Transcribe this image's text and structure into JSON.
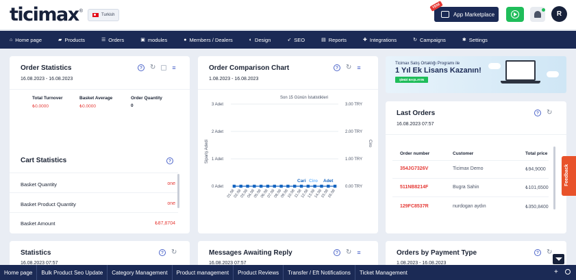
{
  "header": {
    "logo": "ticimax",
    "logo_mark": "®",
    "language": "Turkish",
    "new_tag": "YENİ",
    "app_marketplace": "App Marketplace",
    "avatar": "R"
  },
  "nav": {
    "items": [
      {
        "label": "Home page",
        "icon": "home-icon"
      },
      {
        "label": "Products",
        "icon": "folder-icon"
      },
      {
        "label": "Orders",
        "icon": "list-icon"
      },
      {
        "label": "modules",
        "icon": "module-icon"
      },
      {
        "label": "Members / Dealers",
        "icon": "users-icon"
      },
      {
        "label": "Design",
        "icon": "palette-icon"
      },
      {
        "label": "SEO",
        "icon": "rocket-icon"
      },
      {
        "label": "Reports",
        "icon": "chart-icon"
      },
      {
        "label": "Integrations",
        "icon": "puzzle-icon"
      },
      {
        "label": "Campaigns",
        "icon": "refresh-icon"
      },
      {
        "label": "Settings",
        "icon": "gear-icon"
      }
    ]
  },
  "order_stats": {
    "title": "Order Statistics",
    "date": "16.08.2023 - 16.08.2023",
    "total_turnover_label": "Total Turnover",
    "total_turnover": "₺0.0000",
    "basket_average_label": "Basket Average",
    "basket_average": "₺0.0000",
    "order_quantity_label": "Order Quantity",
    "order_quantity": "0"
  },
  "cart_stats": {
    "title": "Cart Statistics",
    "rows": [
      {
        "label": "Basket Quantity",
        "value": "one"
      },
      {
        "label": "Basket Product Quantity",
        "value": "one"
      },
      {
        "label": "Basket Amount",
        "value": "₺87,8704"
      }
    ]
  },
  "comparison": {
    "title": "Order Comparison Chart",
    "date": "1.08.2023 - 16.08.2023"
  },
  "chart_data": {
    "type": "line",
    "title": "Son 15 Günün İstatistikleri",
    "ylabel": "Sipariş Adedi",
    "ylabel_right": "Ciro",
    "y_ticks": [
      "3 Adet",
      "2 Adet",
      "1 Adet",
      "0 Adet"
    ],
    "y2_ticks": [
      "3.00 TRY",
      "2.00 TRY",
      "1.00 TRY",
      "0.00 TRY"
    ],
    "ylim": [
      0,
      3
    ],
    "categories": [
      "01.08",
      "02.08",
      "03.08",
      "04.08",
      "05.08",
      "06.08",
      "07.08",
      "08.08",
      "09.08",
      "10.08",
      "11.08",
      "12.08",
      "13.08",
      "14.08",
      "15.08",
      "16.08"
    ],
    "series": [
      {
        "name": "Adet",
        "values": [
          0,
          0,
          0,
          0,
          0,
          0,
          0,
          0,
          0,
          0,
          0,
          0,
          0,
          0,
          0,
          0
        ]
      },
      {
        "name": "Ciro",
        "values": [
          0,
          0,
          0,
          0,
          0,
          0,
          0,
          0,
          0,
          0,
          0,
          0,
          0,
          0,
          0,
          0
        ]
      }
    ],
    "legend": [
      "Cari",
      "Ciro",
      "Adet"
    ]
  },
  "banner": {
    "line1": "Ticimax Satış Ortaklığı Programı ile",
    "line2": "1 Yıl Ek Lisans Kazanın!",
    "button": "ŞİMDİ BAŞLAYIN"
  },
  "last_orders": {
    "title": "Last Orders",
    "date": "16.08.2023 07:57",
    "col_order": "Order number",
    "col_customer": "Customer",
    "col_price": "Total price",
    "rows": [
      {
        "no": "354JG7326V",
        "customer": "Ticimax Demo",
        "price": "₺94,9000"
      },
      {
        "no": "511NB8214F",
        "customer": "Bugra Sahin",
        "price": "₺101,6500"
      },
      {
        "no": "129FC8537R",
        "customer": "nurdogan aydın",
        "price": "₺350,8400"
      }
    ]
  },
  "statistics": {
    "title": "Statistics",
    "date": "16.08.2023 07:57"
  },
  "messages": {
    "title": "Messages Awaiting Reply",
    "date": "16.08.2023 07:57"
  },
  "payment": {
    "title": "Orders by Payment Type",
    "date": "1.08.2023 - 16.08.2023"
  },
  "feedback": "Feedback",
  "bottombar": {
    "items": [
      "Home page",
      "Bulk Product Seo Update",
      "Category Management",
      "Product management",
      "Product Reviews",
      "Transfer / Eft Notifications",
      "Ticket Management"
    ],
    "plus": "+"
  }
}
